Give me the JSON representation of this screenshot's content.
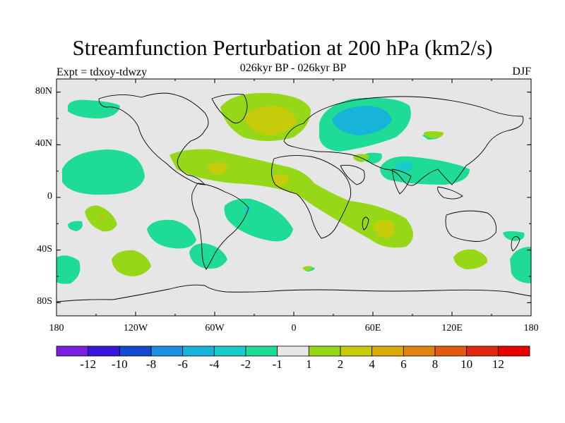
{
  "title": "Streamfunction Perturbation at 200 hPa (km2/s)",
  "subtitle": "026kyr BP - 026kyr BP",
  "expt_label": "Expt = tdxoy-tdwzy",
  "season": "DJF",
  "lat_labels": [
    "80N",
    "40N",
    "0",
    "40S",
    "80S"
  ],
  "lon_labels": [
    "180",
    "120W",
    "60W",
    "0",
    "60E",
    "120E",
    "180"
  ],
  "colorbar": {
    "colors": [
      "#7a1ee0",
      "#3a14d8",
      "#1449d2",
      "#1e8ee0",
      "#18b3d8",
      "#18cccc",
      "#1edc96",
      "#e6e6e6",
      "#96d818",
      "#c6cc0a",
      "#dcaa0a",
      "#e08214",
      "#e05a14",
      "#e02814",
      "#e60000"
    ],
    "labels": [
      "-12",
      "-10",
      "-8",
      "-6",
      "-4",
      "-2",
      "-1",
      "1",
      "2",
      "4",
      "6",
      "8",
      "10",
      "12"
    ]
  },
  "map_colors": {
    "background": "#e6e6e6",
    "neg1": "#1edc96",
    "neg2": "#18cccc",
    "neg3": "#18b3d8",
    "pos1": "#96d818",
    "pos2": "#c6cc0a",
    "pos3": "#dcaa0a",
    "coast": "#000000"
  }
}
